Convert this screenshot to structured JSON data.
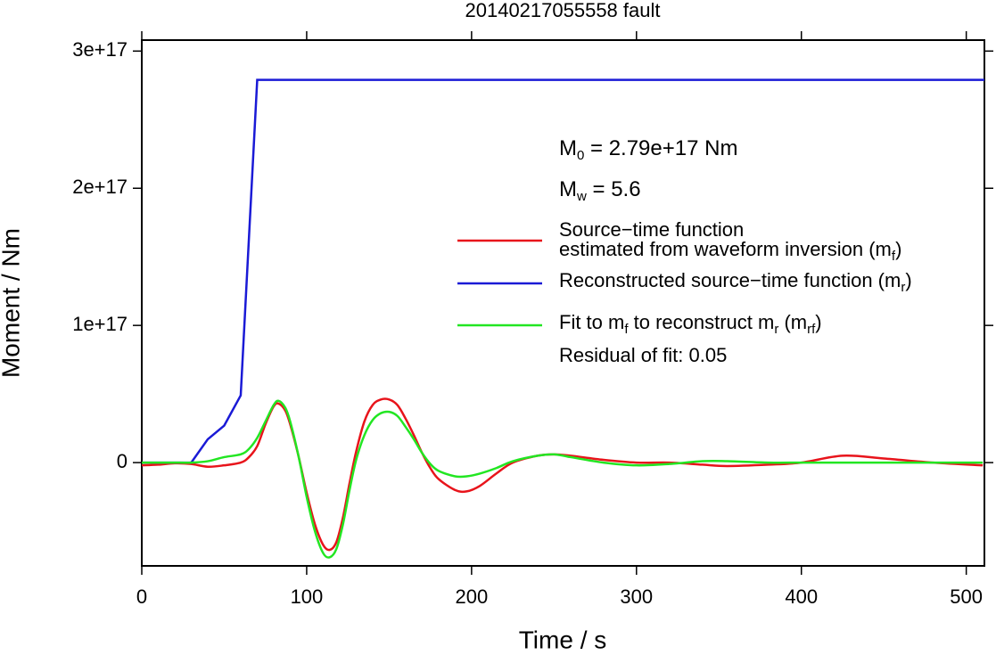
{
  "chart_data": {
    "type": "line",
    "title": "20140217055558 fault",
    "xlabel": "Time / s",
    "ylabel": "Moment / Nm",
    "xlim": [
      0,
      511
    ],
    "ylim": [
      -7.53e+16,
      3.08e+17
    ],
    "xticks": [
      0,
      100,
      200,
      300,
      400,
      500
    ],
    "yticks": [
      0,
      {
        "value": 1e+17,
        "label": "1e+17"
      },
      {
        "value": 2e+17,
        "label": "2e+17"
      },
      {
        "value": 3e+17,
        "label": "3e+17"
      }
    ],
    "grid": false,
    "annotations": [
      [
        "M",
        "0",
        " = 2.79e+17 Nm"
      ],
      [
        "M",
        "w",
        " = 5.6"
      ],
      [
        "Residual of fit: 0.05"
      ]
    ],
    "series": [
      {
        "name": [
          [
            "Source−time function"
          ],
          [
            "estimated from waveform inversion (m",
            "f",
            ")"
          ]
        ],
        "color": "#e8141b",
        "x": [
          0,
          10,
          20,
          30,
          40,
          50,
          60,
          65,
          70,
          75,
          80,
          83,
          87,
          90,
          95,
          100,
          105,
          110,
          114,
          118,
          122,
          126,
          130,
          135,
          140,
          145,
          150,
          155,
          160,
          165,
          170,
          175,
          180,
          190,
          197,
          205,
          215,
          225,
          240,
          250,
          260,
          280,
          300,
          320,
          340,
          355,
          380,
          400,
          425,
          450,
          480,
          510
        ],
        "values": [
          -2000000000000000.0,
          -1500000000000000.0,
          -500000000000000.0,
          -1000000000000000.0,
          -3000000000000000.0,
          -2000000000000000.0,
          0,
          4000000000000000.0,
          1.2e+16,
          2.8e+16,
          4.1e+16,
          4.3e+16,
          3.8e+16,
          2.8e+16,
          5000000000000000.0,
          -2.2e+16,
          -4.5e+16,
          -6e+16,
          -6.36e+16,
          -5.8e+16,
          -4e+16,
          -1.5e+16,
          8000000000000000.0,
          3e+16,
          4.2e+16,
          4.6e+16,
          4.6e+16,
          4.2e+16,
          3.2e+16,
          2e+16,
          7000000000000000.0,
          -4000000000000000.0,
          -1.2e+16,
          -2e+16,
          -2.1e+16,
          -1.7e+16,
          -8000000000000000.0,
          0,
          5000000000000000.0,
          6000000000000000.0,
          5000000000000000.0,
          2000000000000000.0,
          0,
          0,
          -1500000000000000.0,
          -2500000000000000.0,
          -1500000000000000.0,
          0,
          5000000000000000.0,
          3000000000000000.0,
          0,
          -2000000000000000.0
        ]
      },
      {
        "name": [
          [
            "Reconstructed source−time function (m",
            "r",
            ")"
          ]
        ],
        "color": "#1a1ad6",
        "x": [
          0,
          30,
          40,
          50,
          60,
          70,
          511
        ],
        "values": [
          0,
          0,
          1.7e+16,
          2.7e+16,
          4.9e+16,
          2.79e+17,
          2.79e+17
        ]
      },
      {
        "name": [
          [
            "Fit to m",
            "f",
            " to reconstruct m",
            "r",
            " (m",
            "rf",
            ")"
          ]
        ],
        "color": "#22e622",
        "x": [
          0,
          10,
          20,
          30,
          40,
          50,
          60,
          65,
          70,
          75,
          80,
          83,
          87,
          90,
          95,
          100,
          105,
          110,
          114,
          118,
          122,
          126,
          130,
          135,
          140,
          145,
          150,
          155,
          160,
          165,
          170,
          175,
          180,
          190,
          197,
          205,
          215,
          225,
          240,
          250,
          260,
          280,
          300,
          320,
          340,
          355,
          380,
          400,
          425,
          450,
          480,
          510
        ],
        "values": [
          0,
          0,
          0,
          0,
          1000000000000000.0,
          4000000000000000.0,
          6000000000000000.0,
          1e+16,
          1.8e+16,
          3e+16,
          4.2e+16,
          4.5e+16,
          4e+16,
          3e+16,
          5000000000000000.0,
          -2.5e+16,
          -5e+16,
          -6.6e+16,
          -6.9e+16,
          -6.3e+16,
          -4.5e+16,
          -2e+16,
          2000000000000000.0,
          2e+16,
          3.1e+16,
          3.6e+16,
          3.7e+16,
          3.4e+16,
          2.6e+16,
          1.7e+16,
          7000000000000000.0,
          -1000000000000000.0,
          -6000000000000000.0,
          -1e+16,
          -1e+16,
          -8000000000000000.0,
          -4000000000000000.0,
          1000000000000000.0,
          5000000000000000.0,
          6000000000000000.0,
          4000000000000000.0,
          0,
          -2000000000000000.0,
          -1000000000000000.0,
          1000000000000000.0,
          1000000000000000.0,
          0,
          0,
          0,
          0,
          0,
          0
        ]
      }
    ]
  }
}
